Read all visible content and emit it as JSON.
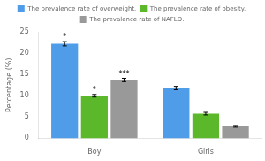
{
  "chart_data": {
    "type": "bar",
    "categories": [
      "Boy",
      "Girls"
    ],
    "series": [
      {
        "name": "The prevalence rate of overweight.",
        "color": "#4f9de8",
        "values": [
          22.2,
          11.8
        ],
        "errors": [
          0.5,
          0.4
        ],
        "annotations": [
          "*",
          null
        ]
      },
      {
        "name": "The prevalence rate of obesity.",
        "color": "#5ab82a",
        "values": [
          10.0,
          5.8
        ],
        "errors": [
          0.3,
          0.3
        ],
        "annotations": [
          "*",
          null
        ]
      },
      {
        "name": "The prevalence rate of NAFLD.",
        "color": "#999999",
        "values": [
          13.7,
          2.8
        ],
        "errors": [
          0.4,
          0.2
        ],
        "annotations": [
          "***",
          null
        ]
      }
    ],
    "ylabel": "Percentage (%)",
    "ylim": [
      0,
      25
    ],
    "yticks": [
      0,
      5,
      10,
      15,
      20,
      25
    ],
    "grid": false,
    "legend": "top"
  }
}
